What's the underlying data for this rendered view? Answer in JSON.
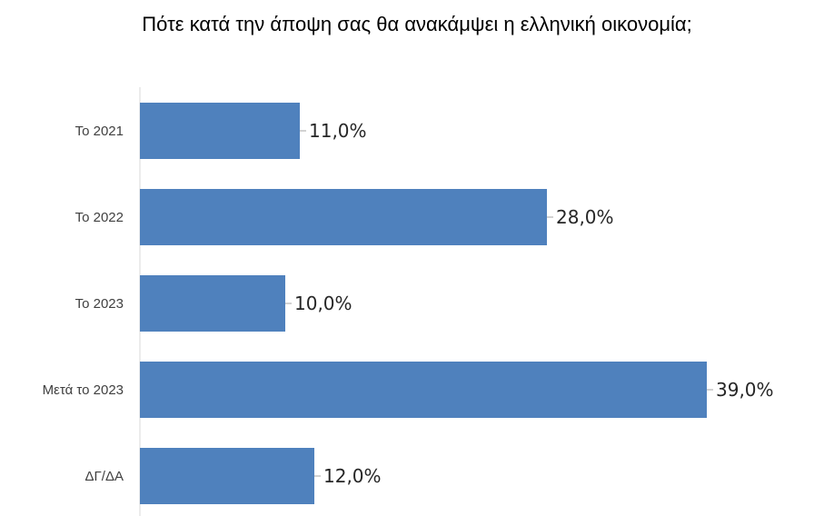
{
  "chart_data": {
    "type": "bar",
    "orientation": "horizontal",
    "title": "Πότε κατά την άποψη σας θα ανακάμψει η ελληνική οικονομία;",
    "categories": [
      "Το 2021",
      "Το 2022",
      "Το 2023",
      "Μετά το 2023",
      "ΔΓ/ΔΑ"
    ],
    "values": [
      11.0,
      28.0,
      10.0,
      39.0,
      12.0
    ],
    "value_labels": [
      "11,0%",
      "28,0%",
      "10,0%",
      "39,0%",
      "12,0%"
    ],
    "xlim": [
      0,
      40
    ],
    "grid": false,
    "bar_color": "#4F81BD"
  }
}
